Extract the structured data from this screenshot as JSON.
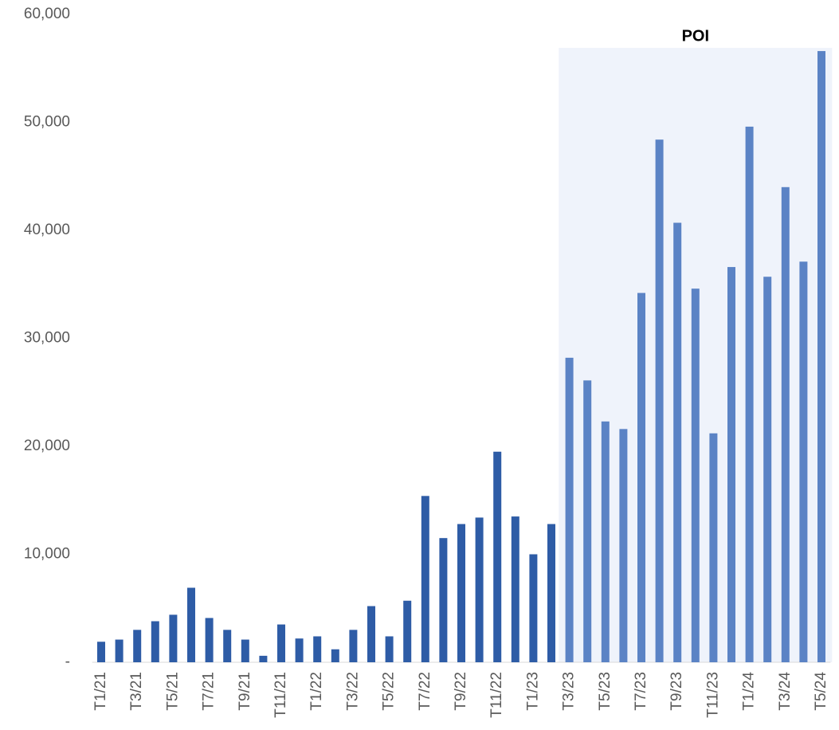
{
  "chart_data": {
    "type": "bar",
    "categories": [
      "T1/21",
      null,
      "T3/21",
      null,
      "T5/21",
      null,
      "T7/21",
      null,
      "T9/21",
      null,
      "T11/21",
      null,
      "T1/22",
      null,
      "T3/22",
      null,
      "T5/22",
      null,
      "T7/22",
      null,
      "T9/22",
      null,
      "T11/22",
      null,
      "T1/23",
      null,
      "T3/23",
      null,
      "T5/23",
      null,
      "T7/23",
      null,
      "T9/23",
      null,
      "T11/23",
      null,
      "T1/24",
      null,
      "T3/24",
      null,
      "T5/24"
    ],
    "values": [
      1900,
      2100,
      3000,
      3800,
      4400,
      6900,
      4100,
      3000,
      2100,
      600,
      3500,
      2200,
      2400,
      1200,
      3000,
      5200,
      2400,
      5700,
      15400,
      11500,
      12800,
      13400,
      19500,
      13500,
      10000,
      12800,
      28200,
      26100,
      22300,
      21600,
      34200,
      48400,
      40700,
      34600,
      21200,
      36600,
      49600,
      35700,
      44000,
      37100,
      56600
    ],
    "color": "#2e5ca6",
    "annotation": {
      "text": "POI",
      "from": "T3/23",
      "to": "T5/24",
      "color": "#5b83c5",
      "fill": "#eff3fb"
    },
    "ylim": [
      0,
      60000
    ],
    "yticks": [
      {
        "value": 0,
        "label": "-"
      },
      {
        "value": 10000,
        "label": "10,000"
      },
      {
        "value": 20000,
        "label": "20,000"
      },
      {
        "value": 30000,
        "label": "30,000"
      },
      {
        "value": 40000,
        "label": "40,000"
      },
      {
        "value": 50000,
        "label": "50,000"
      },
      {
        "value": 60000,
        "label": "60,000"
      }
    ],
    "grid": false
  }
}
